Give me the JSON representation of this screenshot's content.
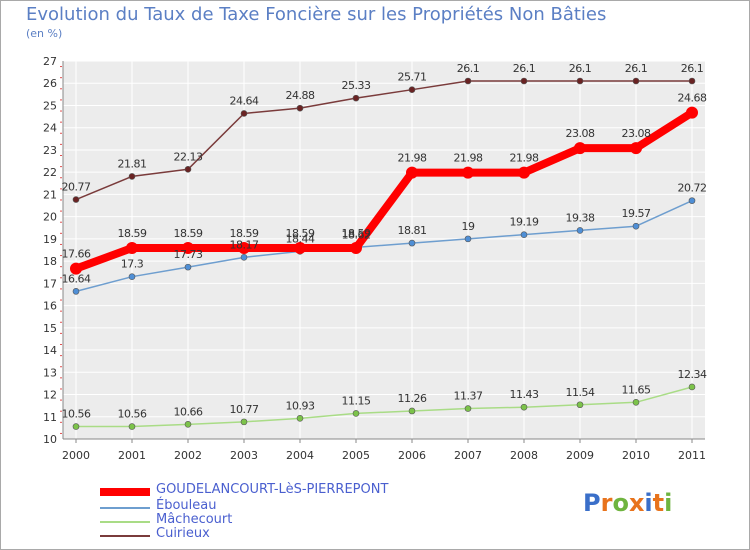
{
  "header": {
    "title": "Evolution du Taux de Taxe Foncière sur les Propriétés Non Bâties",
    "unit": "(en %)"
  },
  "logo": {
    "text": "Proxiti",
    "letters": [
      "P",
      "r",
      "o",
      "x",
      "i",
      "t",
      "i"
    ],
    "colors": [
      "#3a6fc9",
      "#e8731c",
      "#6fb43f",
      "#e8731c",
      "#3a6fc9",
      "#e8731c",
      "#6fb43f"
    ]
  },
  "chart_data": {
    "type": "line",
    "title": "Evolution du Taux de Taxe Foncière sur les Propriétés Non Bâties",
    "ylabel": "(en %)",
    "xlabel": "",
    "ylim": [
      10,
      27
    ],
    "yticks": [
      10,
      11,
      12,
      13,
      14,
      15,
      16,
      17,
      18,
      19,
      20,
      21,
      22,
      23,
      24,
      25,
      26,
      27
    ],
    "grid": true,
    "x": [
      "2000",
      "2001",
      "2002",
      "2003",
      "2004",
      "2005",
      "2006",
      "2007",
      "2008",
      "2009",
      "2010",
      "2011"
    ],
    "series": [
      {
        "name": "GOUDELANCOURT-LèS-PIERREPONT",
        "color": "#ff0000",
        "marker_color": "#ff0000",
        "emphasis": true,
        "values": [
          17.66,
          18.59,
          18.59,
          18.59,
          18.59,
          18.59,
          21.98,
          21.98,
          21.98,
          23.08,
          23.08,
          24.68
        ],
        "labels": [
          "17.66",
          "18.59",
          "18.59",
          "18.59",
          "18.59",
          "18.59",
          "21.98",
          "21.98",
          "21.98",
          "23.08",
          "23.08",
          "24.68"
        ]
      },
      {
        "name": "Ébouleau",
        "color": "#6e9ecf",
        "marker_color": "#4f8fd6",
        "emphasis": false,
        "values": [
          16.64,
          17.3,
          17.73,
          18.17,
          18.44,
          18.62,
          18.81,
          19.0,
          19.19,
          19.38,
          19.57,
          20.72
        ],
        "labels": [
          "16.64",
          "17.3",
          "17.73",
          "18.17",
          "18.44",
          "18.62",
          "18.81",
          "19",
          "19.19",
          "19.38",
          "19.57",
          "20.72"
        ]
      },
      {
        "name": "Mâchecourt",
        "color": "#a9dc86",
        "marker_color": "#7cc34a",
        "emphasis": false,
        "values": [
          10.56,
          10.56,
          10.66,
          10.77,
          10.93,
          11.15,
          11.26,
          11.37,
          11.43,
          11.54,
          11.65,
          12.34
        ],
        "labels": [
          "10.56",
          "10.56",
          "10.66",
          "10.77",
          "10.93",
          "11.15",
          "11.26",
          "11.37",
          "11.43",
          "11.54",
          "11.65",
          "12.34"
        ]
      },
      {
        "name": "Cuirieux",
        "color": "#7a3b3b",
        "marker_color": "#6a2323",
        "emphasis": false,
        "values": [
          20.77,
          21.81,
          22.13,
          24.64,
          24.88,
          25.33,
          25.71,
          26.1,
          26.1,
          26.1,
          26.1,
          26.1
        ],
        "labels": [
          "20.77",
          "21.81",
          "22.13",
          "24.64",
          "24.88",
          "25.33",
          "25.71",
          "26.1",
          "26.1",
          "26.1",
          "26.1",
          "26.1"
        ]
      }
    ],
    "legend": {
      "placement": "bottom-left",
      "entries": [
        "GOUDELANCOURT-LèS-PIERREPONT",
        "Ébouleau",
        "Mâchecourt",
        "Cuirieux"
      ]
    }
  }
}
